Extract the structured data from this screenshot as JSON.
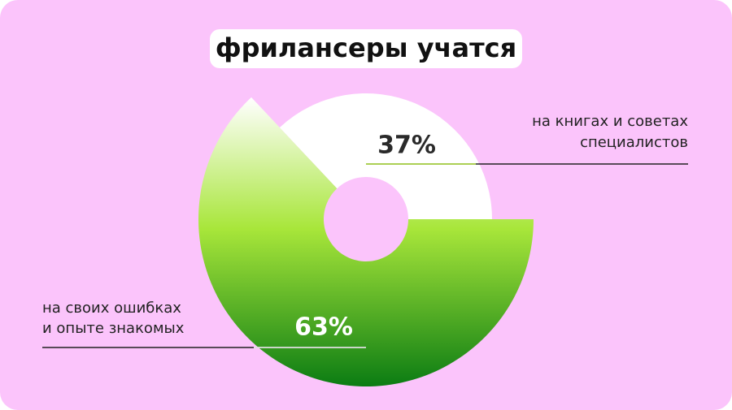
{
  "chart_data": {
    "type": "pie",
    "title": "фрилансеры учатся",
    "categories": [
      [
        "на своих ошибках",
        "и опыте знакомых"
      ],
      [
        "на книгах и советах",
        "специалистов"
      ]
    ],
    "values": [
      63,
      37
    ],
    "value_labels": [
      "63%",
      "37%"
    ],
    "colors": [
      "#a8e63a",
      "#ffffff"
    ]
  }
}
